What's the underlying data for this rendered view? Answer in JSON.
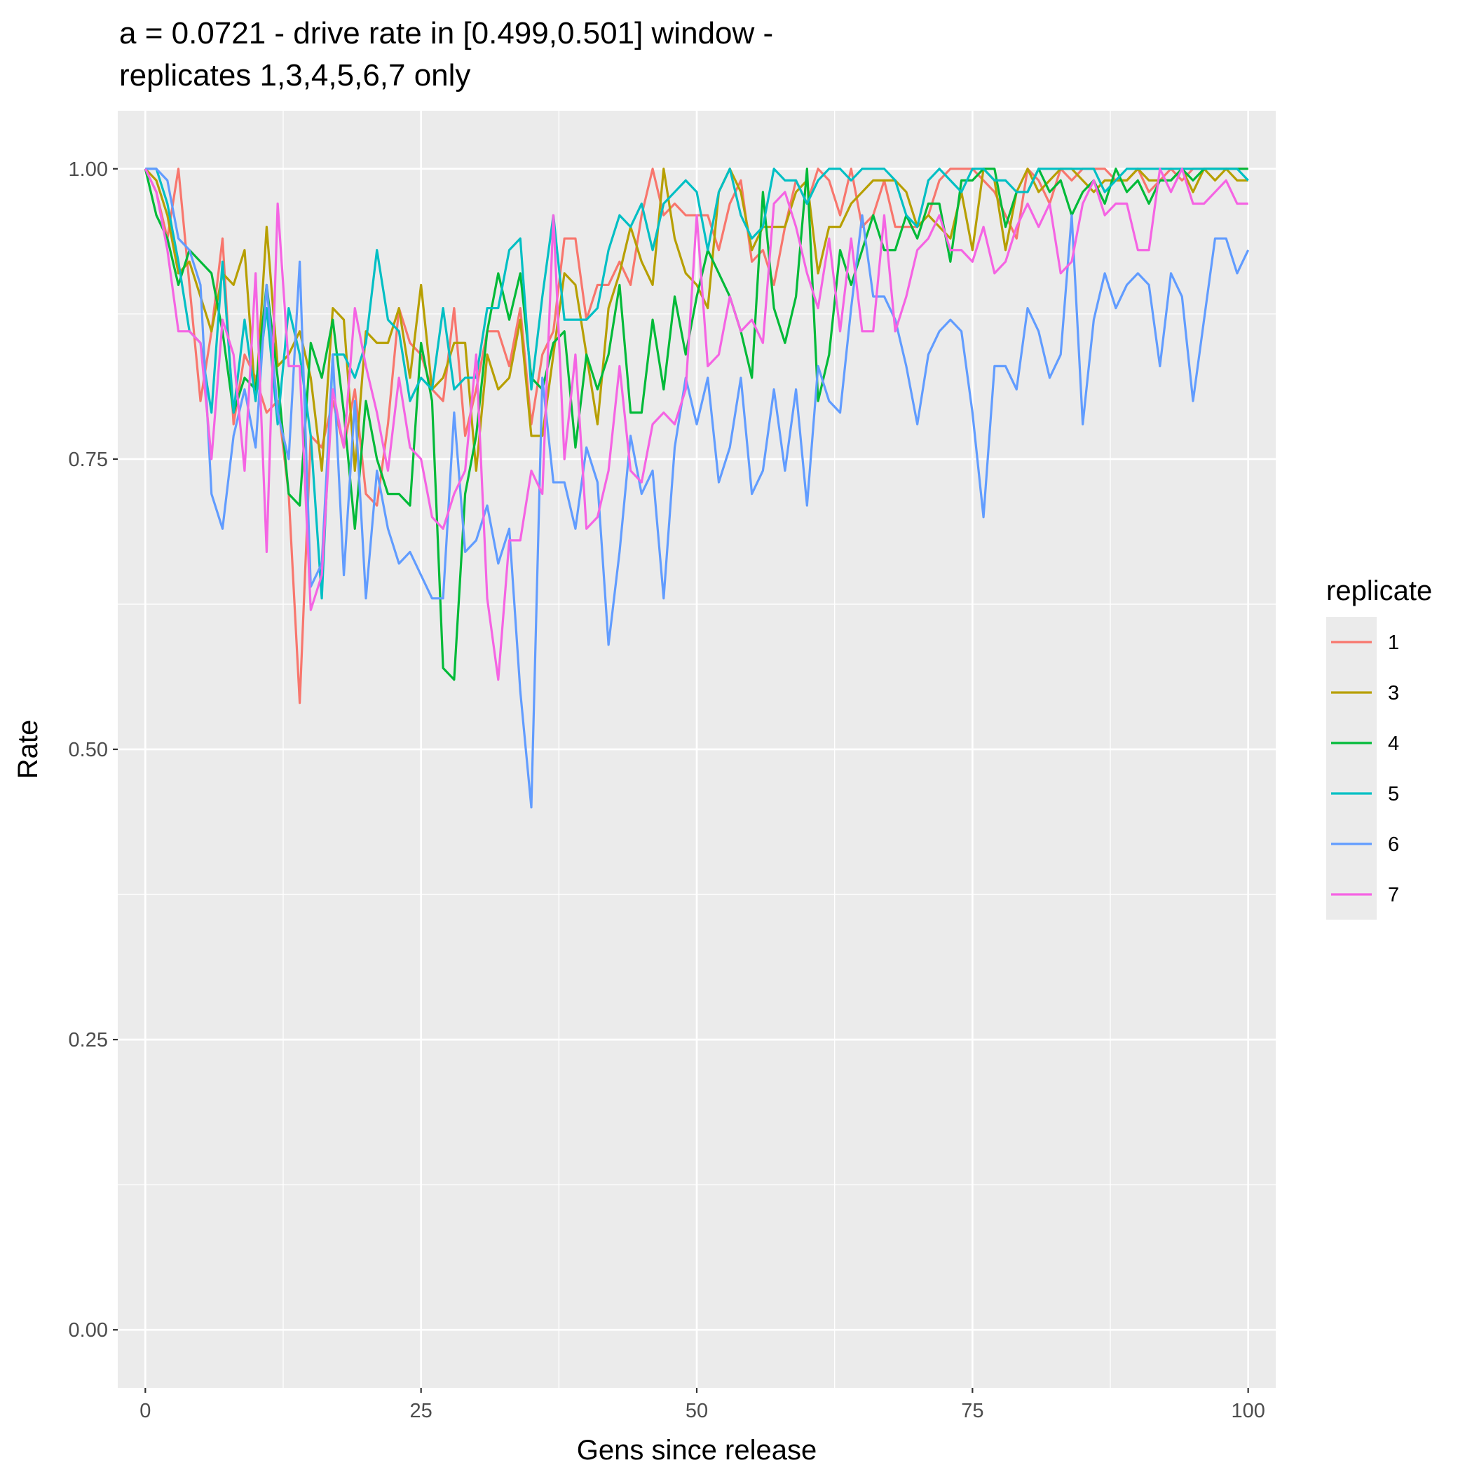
{
  "chart_data": {
    "type": "line",
    "title": "a = 0.0721 - drive rate in [0.499,0.501] window -",
    "subtitle": "replicates 1,3,4,5,6,7 only",
    "xlabel": "Gens since release",
    "ylabel": "Rate",
    "xlim": [
      -2.5,
      102.5
    ],
    "ylim": [
      -0.05,
      1.05
    ],
    "x_ticks": [
      0,
      25,
      50,
      75,
      100
    ],
    "x_tick_labels": [
      "0",
      "25",
      "50",
      "75",
      "100"
    ],
    "y_ticks": [
      0,
      0.25,
      0.5,
      0.75,
      1
    ],
    "y_tick_labels": [
      "0.00",
      "0.25",
      "0.50",
      "0.75",
      "1.00"
    ],
    "grid": true,
    "legend_title": "replicate",
    "legend_position": "right",
    "x": [
      0,
      1,
      2,
      3,
      4,
      5,
      6,
      7,
      8,
      9,
      10,
      11,
      12,
      13,
      14,
      15,
      16,
      17,
      18,
      19,
      20,
      21,
      22,
      23,
      24,
      25,
      26,
      27,
      28,
      29,
      30,
      31,
      32,
      33,
      34,
      35,
      36,
      37,
      38,
      39,
      40,
      41,
      42,
      43,
      44,
      45,
      46,
      47,
      48,
      49,
      50,
      51,
      52,
      53,
      54,
      55,
      56,
      57,
      58,
      59,
      60,
      61,
      62,
      63,
      64,
      65,
      66,
      67,
      68,
      69,
      70,
      71,
      72,
      73,
      74,
      75,
      76,
      77,
      78,
      79,
      80,
      81,
      82,
      83,
      84,
      85,
      86,
      87,
      88,
      89,
      90,
      91,
      92,
      93,
      94,
      95,
      96,
      97,
      98,
      99,
      100
    ],
    "series": [
      {
        "name": "1",
        "color": "#F8766D",
        "values": [
          1.0,
          0.98,
          0.94,
          1.0,
          0.9,
          0.8,
          0.86,
          0.94,
          0.78,
          0.84,
          0.82,
          0.79,
          0.8,
          0.72,
          0.54,
          0.77,
          0.76,
          0.8,
          0.76,
          0.81,
          0.72,
          0.71,
          0.78,
          0.88,
          0.85,
          0.84,
          0.81,
          0.8,
          0.88,
          0.77,
          0.81,
          0.86,
          0.86,
          0.83,
          0.88,
          0.78,
          0.84,
          0.86,
          0.94,
          0.94,
          0.87,
          0.9,
          0.9,
          0.92,
          0.9,
          0.96,
          1.0,
          0.96,
          0.97,
          0.96,
          0.96,
          0.96,
          0.93,
          0.97,
          0.99,
          0.92,
          0.93,
          0.9,
          0.95,
          0.99,
          0.97,
          1.0,
          0.99,
          0.96,
          1.0,
          0.95,
          0.96,
          0.99,
          0.95,
          0.95,
          0.95,
          0.96,
          0.99,
          1.0,
          1.0,
          1.0,
          0.99,
          0.98,
          0.96,
          0.94,
          1.0,
          0.99,
          0.97,
          1.0,
          0.99,
          1.0,
          1.0,
          1.0,
          0.99,
          0.99,
          1.0,
          0.98,
          0.99,
          1.0,
          0.99,
          1.0,
          1.0,
          1.0,
          1.0,
          1.0,
          1.0
        ]
      },
      {
        "name": "3",
        "color": "#B79F00",
        "values": [
          1.0,
          0.99,
          0.96,
          0.91,
          0.92,
          0.89,
          0.86,
          0.91,
          0.9,
          0.93,
          0.8,
          0.95,
          0.83,
          0.84,
          0.86,
          0.82,
          0.74,
          0.88,
          0.87,
          0.74,
          0.86,
          0.85,
          0.85,
          0.88,
          0.82,
          0.9,
          0.81,
          0.82,
          0.85,
          0.85,
          0.74,
          0.84,
          0.81,
          0.82,
          0.87,
          0.77,
          0.77,
          0.84,
          0.91,
          0.9,
          0.84,
          0.78,
          0.88,
          0.91,
          0.95,
          0.92,
          0.9,
          1.0,
          0.94,
          0.91,
          0.9,
          0.88,
          0.98,
          1.0,
          0.98,
          0.93,
          0.95,
          0.95,
          0.95,
          0.98,
          0.99,
          0.91,
          0.95,
          0.95,
          0.97,
          0.98,
          0.99,
          0.99,
          0.99,
          0.98,
          0.95,
          0.96,
          0.95,
          0.94,
          0.98,
          0.93,
          1.0,
          0.99,
          0.93,
          0.98,
          1.0,
          0.98,
          0.99,
          1.0,
          1.0,
          0.99,
          0.98,
          0.99,
          0.99,
          0.99,
          1.0,
          0.99,
          0.99,
          0.99,
          1.0,
          0.98,
          1.0,
          0.99,
          1.0,
          0.99,
          0.99
        ]
      },
      {
        "name": "4",
        "color": "#00BA38",
        "values": [
          1.0,
          0.96,
          0.94,
          0.9,
          0.93,
          0.92,
          0.91,
          0.86,
          0.79,
          0.82,
          0.81,
          0.9,
          0.82,
          0.72,
          0.71,
          0.85,
          0.82,
          0.87,
          0.79,
          0.69,
          0.8,
          0.75,
          0.72,
          0.72,
          0.71,
          0.85,
          0.8,
          0.57,
          0.56,
          0.72,
          0.77,
          0.86,
          0.91,
          0.87,
          0.91,
          0.82,
          0.81,
          0.85,
          0.86,
          0.76,
          0.84,
          0.81,
          0.84,
          0.9,
          0.79,
          0.79,
          0.87,
          0.81,
          0.89,
          0.84,
          0.89,
          0.93,
          0.91,
          0.89,
          0.86,
          0.82,
          0.98,
          0.88,
          0.85,
          0.89,
          1.0,
          0.8,
          0.84,
          0.93,
          0.9,
          0.93,
          0.96,
          0.93,
          0.93,
          0.96,
          0.94,
          0.97,
          0.97,
          0.92,
          0.99,
          0.99,
          1.0,
          1.0,
          0.95,
          0.98,
          0.98,
          1.0,
          0.98,
          0.99,
          0.96,
          0.98,
          0.99,
          0.97,
          1.0,
          0.98,
          0.99,
          0.97,
          0.99,
          0.99,
          1.0,
          0.99,
          1.0,
          1.0,
          1.0,
          1.0,
          1.0
        ]
      },
      {
        "name": "5",
        "color": "#00BFC4",
        "values": [
          1.0,
          1.0,
          0.97,
          0.92,
          0.86,
          0.85,
          0.79,
          0.92,
          0.79,
          0.87,
          0.8,
          0.88,
          0.78,
          0.88,
          0.84,
          0.77,
          0.63,
          0.84,
          0.84,
          0.82,
          0.85,
          0.93,
          0.87,
          0.86,
          0.8,
          0.82,
          0.81,
          0.88,
          0.81,
          0.82,
          0.82,
          0.88,
          0.88,
          0.93,
          0.94,
          0.81,
          0.89,
          0.96,
          0.87,
          0.87,
          0.87,
          0.88,
          0.93,
          0.96,
          0.95,
          0.97,
          0.93,
          0.97,
          0.98,
          0.99,
          0.98,
          0.93,
          0.98,
          1.0,
          0.96,
          0.94,
          0.95,
          1.0,
          0.99,
          0.99,
          0.97,
          0.99,
          1.0,
          1.0,
          0.99,
          1.0,
          1.0,
          1.0,
          0.99,
          0.96,
          0.95,
          0.99,
          1.0,
          0.99,
          0.98,
          1.0,
          1.0,
          0.99,
          0.99,
          0.98,
          0.98,
          1.0,
          1.0,
          1.0,
          1.0,
          1.0,
          1.0,
          0.98,
          0.99,
          1.0,
          1.0,
          1.0,
          1.0,
          1.0,
          1.0,
          1.0,
          1.0,
          1.0,
          1.0,
          1.0,
          0.99
        ]
      },
      {
        "name": "6",
        "color": "#619CFF",
        "values": [
          1.0,
          1.0,
          0.99,
          0.94,
          0.93,
          0.9,
          0.72,
          0.69,
          0.77,
          0.81,
          0.76,
          0.9,
          0.79,
          0.75,
          0.92,
          0.64,
          0.66,
          0.84,
          0.65,
          0.8,
          0.63,
          0.74,
          0.69,
          0.66,
          0.67,
          0.65,
          0.63,
          0.63,
          0.79,
          0.67,
          0.68,
          0.71,
          0.66,
          0.69,
          0.55,
          0.45,
          0.82,
          0.73,
          0.73,
          0.69,
          0.76,
          0.73,
          0.59,
          0.67,
          0.77,
          0.72,
          0.74,
          0.63,
          0.76,
          0.82,
          0.78,
          0.82,
          0.73,
          0.76,
          0.82,
          0.72,
          0.74,
          0.81,
          0.74,
          0.81,
          0.71,
          0.83,
          0.8,
          0.79,
          0.88,
          0.96,
          0.89,
          0.89,
          0.87,
          0.83,
          0.78,
          0.84,
          0.86,
          0.87,
          0.86,
          0.79,
          0.7,
          0.83,
          0.83,
          0.81,
          0.88,
          0.86,
          0.82,
          0.84,
          0.96,
          0.78,
          0.87,
          0.91,
          0.88,
          0.9,
          0.91,
          0.9,
          0.83,
          0.91,
          0.89,
          0.8,
          0.87,
          0.94,
          0.94,
          0.91,
          0.93
        ]
      },
      {
        "name": "7",
        "color": "#F564E3",
        "values": [
          1.0,
          0.98,
          0.93,
          0.86,
          0.86,
          0.85,
          0.75,
          0.87,
          0.84,
          0.74,
          0.91,
          0.67,
          0.97,
          0.83,
          0.83,
          0.62,
          0.65,
          0.81,
          0.76,
          0.88,
          0.83,
          0.79,
          0.74,
          0.82,
          0.76,
          0.75,
          0.7,
          0.69,
          0.72,
          0.74,
          0.84,
          0.63,
          0.56,
          0.68,
          0.68,
          0.74,
          0.72,
          0.96,
          0.75,
          0.84,
          0.69,
          0.7,
          0.74,
          0.83,
          0.74,
          0.73,
          0.78,
          0.79,
          0.78,
          0.81,
          0.96,
          0.83,
          0.84,
          0.89,
          0.86,
          0.87,
          0.85,
          0.97,
          0.98,
          0.95,
          0.91,
          0.88,
          0.94,
          0.86,
          0.94,
          0.86,
          0.86,
          0.96,
          0.86,
          0.89,
          0.93,
          0.94,
          0.96,
          0.93,
          0.93,
          0.92,
          0.95,
          0.91,
          0.92,
          0.95,
          0.97,
          0.95,
          0.97,
          0.91,
          0.92,
          0.97,
          0.99,
          0.96,
          0.97,
          0.97,
          0.93,
          0.93,
          1.0,
          0.98,
          1.0,
          0.97,
          0.97,
          0.98,
          0.99,
          0.97,
          0.97
        ]
      }
    ]
  }
}
